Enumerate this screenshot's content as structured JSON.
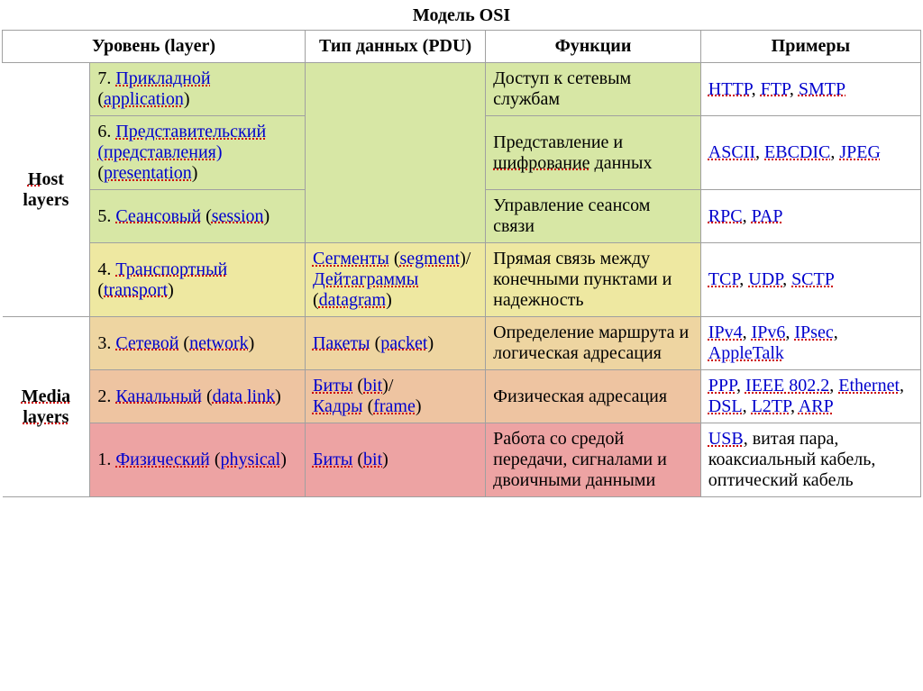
{
  "title": "Модель OSI",
  "columns": {
    "layer": "Уровень (layer)",
    "pdu": "Тип данных (PDU)",
    "functions": "Функции",
    "examples": "Примеры"
  },
  "groups": {
    "host_prefix": "H",
    "host_mid": "ost",
    "host_line2": "layers",
    "media_prefix": "Media",
    "media_line2": "layers"
  },
  "rows": [
    {
      "num": "7.",
      "name_ru": "Прикладной",
      "name_en": "application",
      "func": "Доступ к сетевым службам",
      "ex": [
        {
          "t": "HTTP",
          "l": 1
        },
        {
          "t": ", "
        },
        {
          "t": "FTP",
          "l": 1
        },
        {
          "t": ", "
        },
        {
          "t": "SMTP",
          "l": 1
        }
      ]
    },
    {
      "num": "6.",
      "name_ru": "Представительский (представления)",
      "name_en": "presentation",
      "func_parts": [
        {
          "t": "Представление и "
        },
        {
          "t": "шифрование",
          "u": 1
        },
        {
          "t": " данных"
        }
      ],
      "ex": [
        {
          "t": "ASCII",
          "l": 1
        },
        {
          "t": ", "
        },
        {
          "t": "EBCDIC",
          "l": 1
        },
        {
          "t": ", "
        },
        {
          "t": "JPEG",
          "l": 1
        }
      ]
    },
    {
      "num": "5.",
      "name_ru": "Сеансовый",
      "name_en": "session",
      "func": "Управление сеансом связи",
      "ex": [
        {
          "t": "RPC",
          "l": 1
        },
        {
          "t": ", "
        },
        {
          "t": "PAP",
          "l": 1
        }
      ]
    },
    {
      "num": "4.",
      "name_ru": "Транспортный",
      "name_en": "transport",
      "pdu_parts": [
        {
          "t": "Сегменты",
          "l": 1
        },
        {
          "t": " ("
        },
        {
          "t": "segment",
          "l": 1
        },
        {
          "t": ")/"
        },
        {
          "br": 1
        },
        {
          "t": "Дейтаграммы",
          "l": 1
        },
        {
          "t": " ("
        },
        {
          "t": "datagram",
          "l": 1
        },
        {
          "t": ")"
        }
      ],
      "func": "Прямая связь между конечными пунктами и надежность",
      "ex": [
        {
          "t": "TCP",
          "l": 1
        },
        {
          "t": ", "
        },
        {
          "t": "UDP",
          "l": 1
        },
        {
          "t": ", "
        },
        {
          "t": "SCTP",
          "l": 1
        }
      ]
    },
    {
      "num": "3.",
      "name_ru": "Сетевой",
      "name_en": "network",
      "pdu_parts": [
        {
          "t": "Пакеты",
          "l": 1
        },
        {
          "t": " ("
        },
        {
          "t": "packet",
          "l": 1
        },
        {
          "t": ")"
        }
      ],
      "func": "Определение маршрута и логическая адресация",
      "ex": [
        {
          "t": "IPv4",
          "l": 1
        },
        {
          "t": ", "
        },
        {
          "t": "IPv6",
          "l": 1
        },
        {
          "t": ", "
        },
        {
          "t": "IPsec",
          "l": 1
        },
        {
          "t": ", "
        },
        {
          "t": "AppleTalk",
          "l": 1
        }
      ]
    },
    {
      "num": "2.",
      "name_ru": "Канальный",
      "name_en": "data link",
      "pdu_parts": [
        {
          "t": "Биты",
          "l": 1
        },
        {
          "t": " ("
        },
        {
          "t": "bit",
          "l": 1
        },
        {
          "t": ")/"
        },
        {
          "br": 1
        },
        {
          "t": "Кадры",
          "l": 1
        },
        {
          "t": " ("
        },
        {
          "t": "frame",
          "l": 1
        },
        {
          "t": ")"
        }
      ],
      "func": "Физическая адресация",
      "ex": [
        {
          "t": "PPP",
          "l": 1
        },
        {
          "t": ", "
        },
        {
          "t": "IEEE 802.2",
          "l": 1
        },
        {
          "t": ", "
        },
        {
          "t": "Ethernet",
          "l": 1
        },
        {
          "t": ", "
        },
        {
          "t": "DSL",
          "l": 1
        },
        {
          "t": ", "
        },
        {
          "t": "L2TP",
          "l": 1
        },
        {
          "t": ", "
        },
        {
          "t": "ARP",
          "l": 1
        }
      ]
    },
    {
      "num": "1.",
      "name_ru": "Физический",
      "name_en": "physical",
      "pdu_parts": [
        {
          "t": "Биты",
          "l": 1
        },
        {
          "t": " ("
        },
        {
          "t": "bit",
          "l": 1
        },
        {
          "t": ")"
        }
      ],
      "func": "Работа со средой передачи, сигналами и двоичными данными",
      "ex": [
        {
          "t": "USB",
          "l": 1
        },
        {
          "t": ", "
        },
        {
          "t": "витая пара",
          "p": 1
        },
        {
          "t": ", "
        },
        {
          "t": "коаксиальный кабель",
          "p": 1
        },
        {
          "t": ", "
        },
        {
          "t": "оптический кабель",
          "p": 1
        }
      ]
    }
  ],
  "colors": {
    "green": "#d7e7a5",
    "yellow": "#eee8a1",
    "tan": "#eed5a1",
    "orange": "#eec4a1",
    "red": "#eda3a3",
    "link": "#0000cc",
    "underline": "#cc0000"
  }
}
